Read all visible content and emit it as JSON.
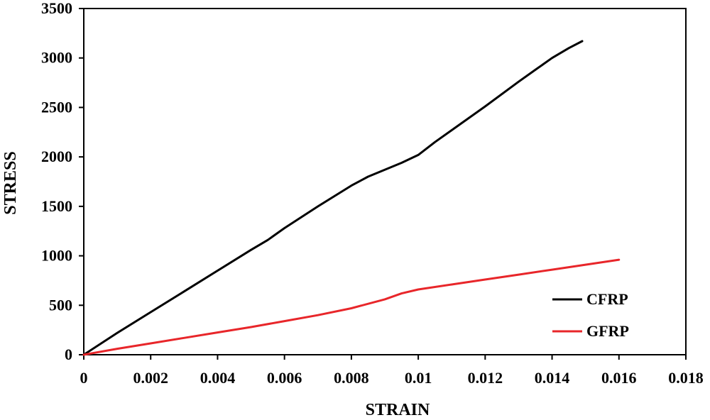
{
  "chart_data": {
    "type": "line",
    "title": "",
    "xlabel": "STRAIN",
    "ylabel": "STRESS",
    "xlim": [
      0,
      0.018
    ],
    "ylim": [
      0,
      3500
    ],
    "xticks": [
      0,
      0.002,
      0.004,
      0.006,
      0.008,
      0.01,
      0.012,
      0.014,
      0.016,
      0.018
    ],
    "xtick_labels": [
      "0",
      "0.002",
      "0.004",
      "0.006",
      "0.008",
      "0.01",
      "0.012",
      "0.014",
      "0.016",
      "0.018"
    ],
    "yticks": [
      0,
      500,
      1000,
      1500,
      2000,
      2500,
      3000,
      3500
    ],
    "ytick_labels": [
      "0",
      "500",
      "1000",
      "1500",
      "2000",
      "2500",
      "3000",
      "3500"
    ],
    "grid": false,
    "legend_position": "bottom-right",
    "series": [
      {
        "name": "CFRP",
        "color": "#000000",
        "x": [
          0,
          0.001,
          0.002,
          0.003,
          0.004,
          0.005,
          0.0055,
          0.006,
          0.007,
          0.008,
          0.0085,
          0.009,
          0.0095,
          0.01,
          0.0105,
          0.011,
          0.012,
          0.013,
          0.0135,
          0.014,
          0.0145,
          0.0149
        ],
        "y": [
          0,
          220,
          430,
          640,
          850,
          1060,
          1160,
          1280,
          1500,
          1710,
          1800,
          1870,
          1940,
          2020,
          2150,
          2270,
          2510,
          2760,
          2880,
          3000,
          3100,
          3170
        ]
      },
      {
        "name": "GFRP",
        "color": "#e8262a",
        "x": [
          0,
          0.001,
          0.002,
          0.003,
          0.004,
          0.005,
          0.006,
          0.007,
          0.008,
          0.009,
          0.0095,
          0.01,
          0.011,
          0.012,
          0.013,
          0.014,
          0.015,
          0.016
        ],
        "y": [
          0,
          60,
          115,
          170,
          225,
          280,
          340,
          400,
          470,
          560,
          620,
          660,
          710,
          760,
          810,
          860,
          910,
          960
        ]
      }
    ]
  }
}
